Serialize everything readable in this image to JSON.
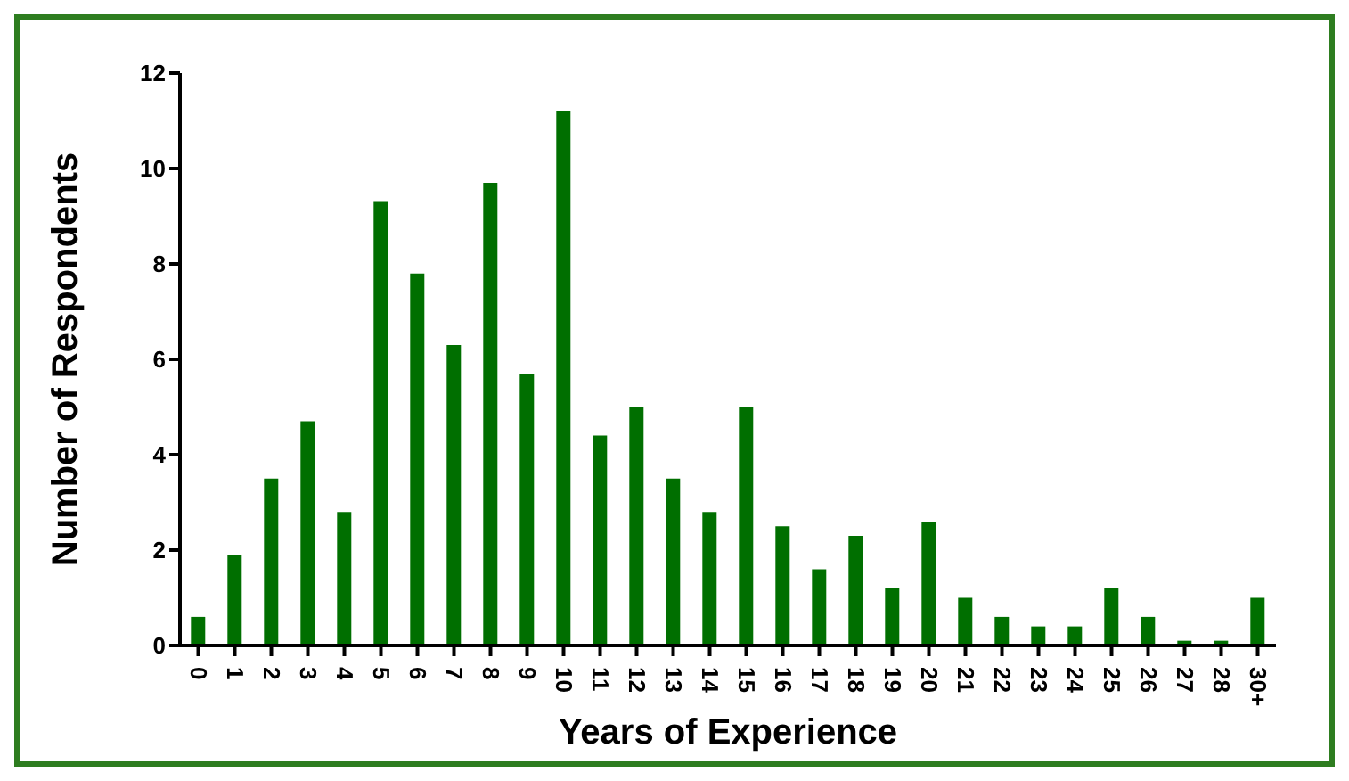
{
  "chart_data": {
    "type": "bar",
    "xlabel": "Years of Experience",
    "ylabel": "Number of Respondents",
    "categories": [
      "0",
      "1",
      "2",
      "3",
      "4",
      "5",
      "6",
      "7",
      "8",
      "9",
      "10",
      "11",
      "12",
      "13",
      "14",
      "15",
      "16",
      "17",
      "18",
      "19",
      "20",
      "21",
      "22",
      "23",
      "24",
      "25",
      "26",
      "27",
      "28",
      "30+"
    ],
    "values": [
      0.6,
      1.9,
      3.5,
      4.7,
      2.8,
      9.3,
      7.8,
      6.3,
      9.7,
      5.7,
      11.2,
      4.4,
      5.0,
      3.5,
      2.8,
      5.0,
      2.5,
      1.6,
      2.3,
      1.2,
      2.6,
      1.0,
      0.6,
      0.4,
      0.4,
      1.2,
      0.6,
      0.1,
      0.1,
      1.0
    ],
    "color": "#006f00",
    "ylim": [
      0,
      12
    ],
    "yticks": [
      0,
      2,
      4,
      6,
      8,
      10,
      12
    ],
    "grid": false,
    "legend": false
  }
}
